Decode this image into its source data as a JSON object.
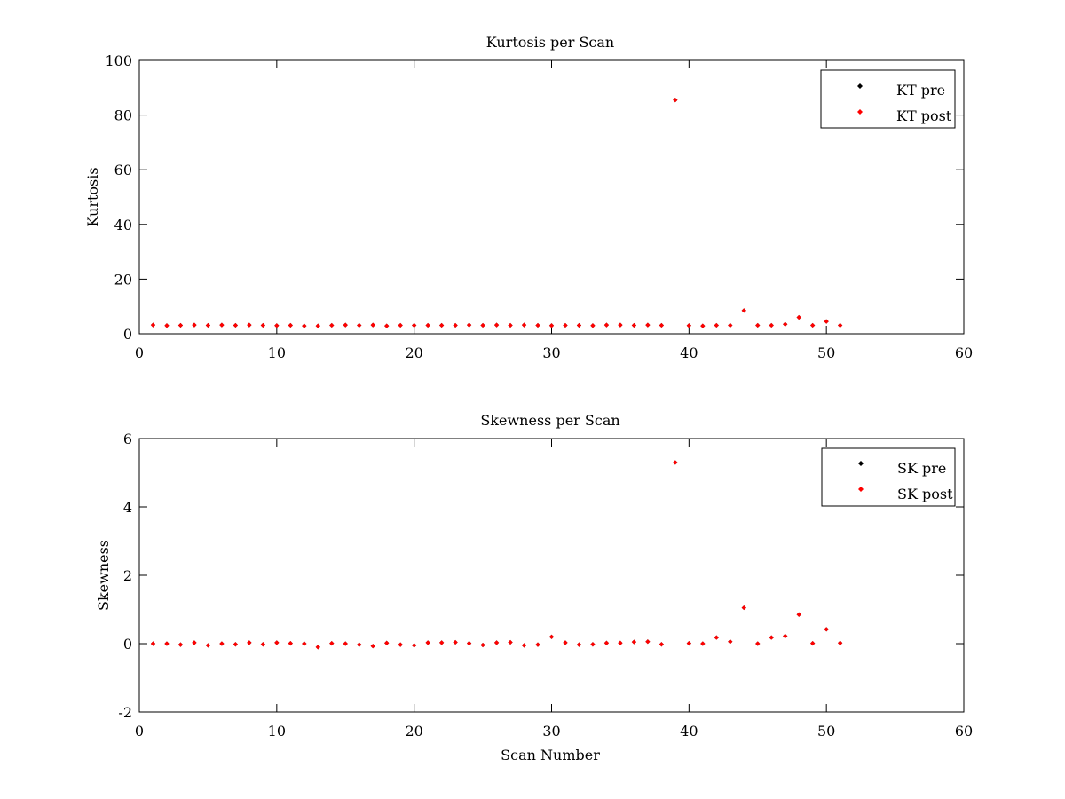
{
  "figure": {
    "background": "#ffffff",
    "axes_color": "#000000"
  },
  "chart_data": [
    {
      "type": "scatter",
      "title": "Kurtosis per Scan",
      "xlabel": "",
      "ylabel": "Kurtosis",
      "xlim": [
        0,
        60
      ],
      "ylim": [
        0,
        100
      ],
      "xticks": [
        0,
        10,
        20,
        30,
        40,
        50,
        60
      ],
      "yticks": [
        0,
        20,
        40,
        60,
        80,
        100
      ],
      "grid": false,
      "legend_position": "top-right",
      "series": [
        {
          "name": "KT pre",
          "color": "#000000",
          "marker": "diamond",
          "x": [
            1,
            2,
            3,
            4,
            5,
            6,
            7,
            8,
            9,
            10,
            11,
            12,
            13,
            14,
            15,
            16,
            17,
            18,
            19,
            20,
            21,
            22,
            23,
            24,
            25,
            26,
            27,
            28,
            29,
            30,
            31,
            32,
            33,
            34,
            35,
            36,
            37,
            38,
            39,
            40,
            41,
            42,
            43,
            44,
            45,
            46,
            47,
            48,
            49,
            50,
            51
          ],
          "y": [
            3.2,
            3.0,
            3.1,
            3.2,
            3.1,
            3.2,
            3.1,
            3.2,
            3.1,
            3.0,
            3.1,
            2.9,
            2.9,
            3.1,
            3.2,
            3.1,
            3.2,
            2.9,
            3.1,
            3.1,
            3.1,
            3.1,
            3.1,
            3.2,
            3.1,
            3.2,
            3.1,
            3.2,
            3.1,
            3.0,
            3.1,
            3.1,
            3.0,
            3.2,
            3.2,
            3.1,
            3.2,
            3.1,
            85.5,
            3.0,
            2.9,
            3.1,
            3.1,
            8.5,
            3.1,
            3.1,
            3.5,
            6.0,
            3.1,
            4.5,
            3.1
          ]
        },
        {
          "name": "KT post",
          "color": "#ff0000",
          "marker": "diamond",
          "x": [
            1,
            2,
            3,
            4,
            5,
            6,
            7,
            8,
            9,
            10,
            11,
            12,
            13,
            14,
            15,
            16,
            17,
            18,
            19,
            20,
            21,
            22,
            23,
            24,
            25,
            26,
            27,
            28,
            29,
            30,
            31,
            32,
            33,
            34,
            35,
            36,
            37,
            38,
            39,
            40,
            41,
            42,
            43,
            44,
            45,
            46,
            47,
            48,
            49,
            50,
            51
          ],
          "y": [
            3.2,
            3.0,
            3.1,
            3.2,
            3.1,
            3.2,
            3.1,
            3.2,
            3.1,
            3.0,
            3.1,
            2.9,
            2.9,
            3.1,
            3.2,
            3.1,
            3.2,
            2.9,
            3.1,
            3.1,
            3.1,
            3.1,
            3.1,
            3.2,
            3.1,
            3.2,
            3.1,
            3.2,
            3.1,
            3.0,
            3.1,
            3.1,
            3.0,
            3.2,
            3.2,
            3.1,
            3.2,
            3.1,
            85.5,
            3.0,
            2.9,
            3.1,
            3.1,
            8.5,
            3.1,
            3.1,
            3.5,
            6.0,
            3.1,
            4.5,
            3.1
          ]
        }
      ]
    },
    {
      "type": "scatter",
      "title": "Skewness per Scan",
      "xlabel": "Scan Number",
      "ylabel": "Skewness",
      "xlim": [
        0,
        60
      ],
      "ylim": [
        -2,
        6
      ],
      "xticks": [
        0,
        10,
        20,
        30,
        40,
        50,
        60
      ],
      "yticks": [
        -2,
        0,
        2,
        4,
        6
      ],
      "grid": false,
      "legend_position": "top-right",
      "series": [
        {
          "name": "SK pre",
          "color": "#000000",
          "marker": "diamond",
          "x": [
            1,
            2,
            3,
            4,
            5,
            6,
            7,
            8,
            9,
            10,
            11,
            12,
            13,
            14,
            15,
            16,
            17,
            18,
            19,
            20,
            21,
            22,
            23,
            24,
            25,
            26,
            27,
            28,
            29,
            30,
            31,
            32,
            33,
            34,
            35,
            36,
            37,
            38,
            39,
            40,
            41,
            42,
            43,
            44,
            45,
            46,
            47,
            48,
            49,
            50,
            51
          ],
          "y": [
            0.0,
            0.0,
            -0.03,
            0.03,
            -0.05,
            0.0,
            -0.02,
            0.03,
            -0.02,
            0.03,
            0.01,
            0.0,
            -0.1,
            0.01,
            0.0,
            -0.03,
            -0.07,
            0.02,
            -0.03,
            -0.05,
            0.03,
            0.03,
            0.04,
            0.01,
            -0.04,
            0.03,
            0.04,
            -0.05,
            -0.03,
            0.2,
            0.03,
            -0.03,
            -0.02,
            0.02,
            0.02,
            0.05,
            0.06,
            -0.02,
            5.3,
            0.01,
            0.0,
            0.18,
            0.06,
            1.05,
            0.0,
            0.18,
            0.22,
            0.85,
            0.01,
            0.42,
            0.02
          ]
        },
        {
          "name": "SK post",
          "color": "#ff0000",
          "marker": "diamond",
          "x": [
            1,
            2,
            3,
            4,
            5,
            6,
            7,
            8,
            9,
            10,
            11,
            12,
            13,
            14,
            15,
            16,
            17,
            18,
            19,
            20,
            21,
            22,
            23,
            24,
            25,
            26,
            27,
            28,
            29,
            30,
            31,
            32,
            33,
            34,
            35,
            36,
            37,
            38,
            39,
            40,
            41,
            42,
            43,
            44,
            45,
            46,
            47,
            48,
            49,
            50,
            51
          ],
          "y": [
            0.0,
            0.0,
            -0.03,
            0.03,
            -0.05,
            0.0,
            -0.02,
            0.03,
            -0.02,
            0.03,
            0.01,
            0.0,
            -0.1,
            0.01,
            0.0,
            -0.03,
            -0.07,
            0.02,
            -0.03,
            -0.05,
            0.03,
            0.03,
            0.04,
            0.01,
            -0.04,
            0.03,
            0.04,
            -0.05,
            -0.03,
            0.2,
            0.03,
            -0.03,
            -0.02,
            0.02,
            0.02,
            0.05,
            0.06,
            -0.02,
            5.3,
            0.01,
            0.0,
            0.18,
            0.06,
            1.05,
            0.0,
            0.18,
            0.22,
            0.85,
            0.01,
            0.42,
            0.02
          ]
        }
      ]
    }
  ]
}
